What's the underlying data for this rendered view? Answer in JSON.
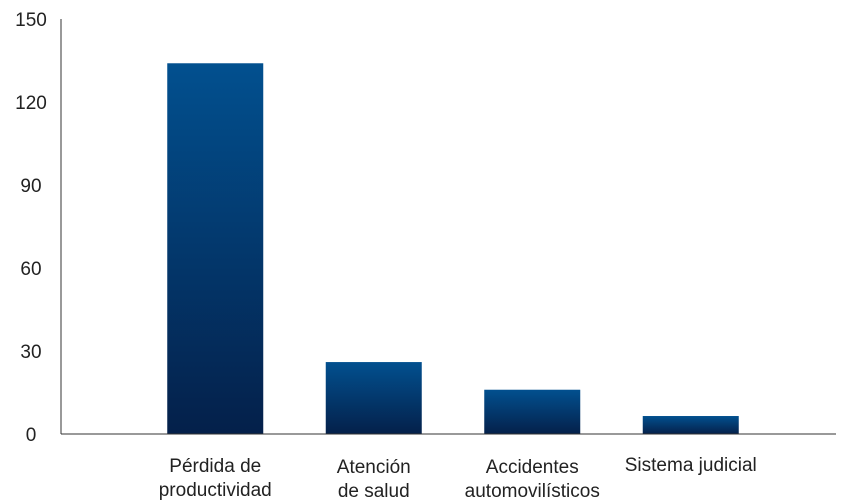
{
  "chart_data": {
    "type": "bar",
    "categories": [
      [
        "Pérdida de",
        "productividad"
      ],
      [
        "Atención",
        "de salud"
      ],
      [
        "Accidentes",
        "automovilísticos"
      ],
      [
        "Sistema judicial"
      ]
    ],
    "values": [
      134,
      26,
      16,
      6.5
    ],
    "ylim": [
      0,
      150
    ],
    "yticks": [
      0,
      30,
      60,
      90,
      120,
      150
    ],
    "grid": false,
    "bar_color_top": "#02508f",
    "bar_color_bottom": "#04204a",
    "title": "",
    "xlabel": "",
    "ylabel": ""
  }
}
